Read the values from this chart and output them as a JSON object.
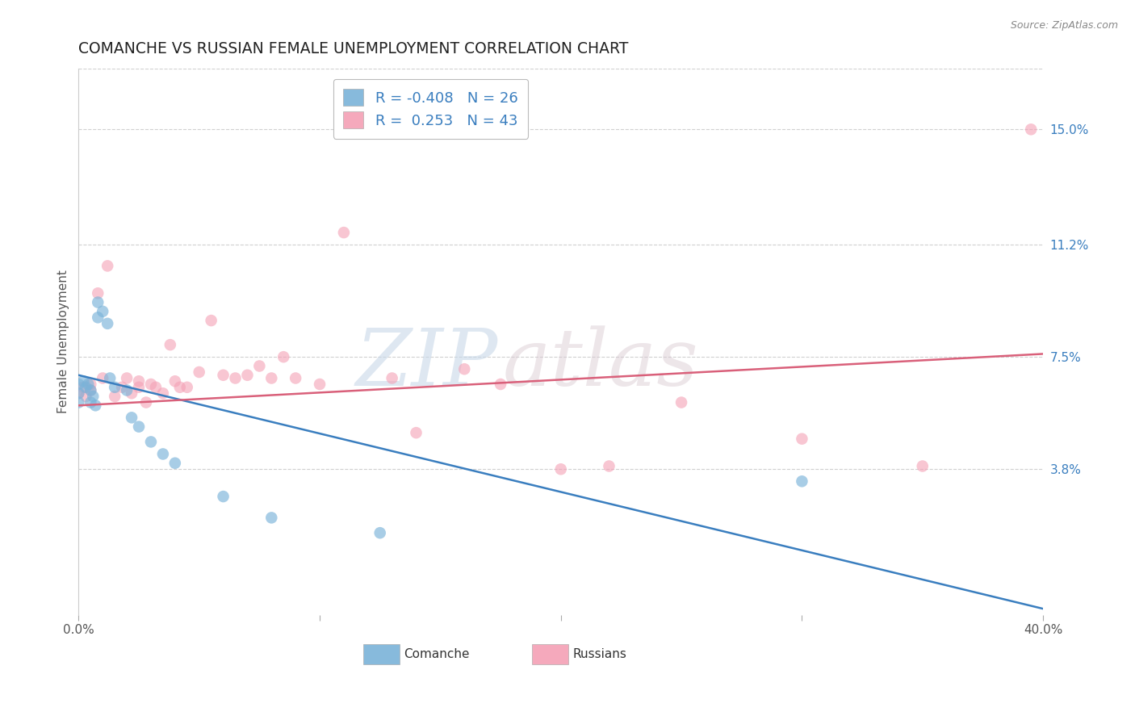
{
  "title": "COMANCHE VS RUSSIAN FEMALE UNEMPLOYMENT CORRELATION CHART",
  "source": "Source: ZipAtlas.com",
  "ylabel": "Female Unemployment",
  "xlim": [
    0.0,
    0.4
  ],
  "ylim": [
    -0.01,
    0.17
  ],
  "ytick_values": [
    0.038,
    0.075,
    0.112,
    0.15
  ],
  "ytick_labels": [
    "3.8%",
    "7.5%",
    "11.2%",
    "15.0%"
  ],
  "xtick_values": [
    0.0,
    0.1,
    0.2,
    0.3,
    0.4
  ],
  "xtick_labels": [
    "0.0%",
    "",
    "",
    "",
    "40.0%"
  ],
  "watermark_zip": "ZIP",
  "watermark_atlas": "atlas",
  "legend_blue_label": "R = -0.408   N = 26",
  "legend_pink_label": "R =  0.253   N = 43",
  "bottom_legend_comanche": "Comanche",
  "bottom_legend_russians": "Russians",
  "comanche_color": "#7ab3d9",
  "russian_color": "#f4a0b5",
  "comanche_line_color": "#3a7ebf",
  "russian_line_color": "#d9607a",
  "grid_color": "#d0d0d0",
  "background_color": "#ffffff",
  "title_fontsize": 13.5,
  "source_fontsize": 9,
  "tick_label_fontsize": 11,
  "legend_fontsize": 13,
  "ylabel_fontsize": 11,
  "marker_size": 110,
  "comanche_alpha": 0.65,
  "russian_alpha": 0.6,
  "comanche_x": [
    0.0,
    0.0,
    0.0,
    0.002,
    0.003,
    0.004,
    0.005,
    0.005,
    0.006,
    0.007,
    0.008,
    0.008,
    0.01,
    0.012,
    0.013,
    0.015,
    0.02,
    0.022,
    0.025,
    0.03,
    0.035,
    0.04,
    0.06,
    0.08,
    0.125,
    0.3
  ],
  "comanche_y": [
    0.066,
    0.063,
    0.06,
    0.067,
    0.065,
    0.066,
    0.064,
    0.06,
    0.062,
    0.059,
    0.088,
    0.093,
    0.09,
    0.086,
    0.068,
    0.065,
    0.064,
    0.055,
    0.052,
    0.047,
    0.043,
    0.04,
    0.029,
    0.022,
    0.017,
    0.034
  ],
  "russian_x": [
    0.0,
    0.002,
    0.003,
    0.005,
    0.005,
    0.008,
    0.01,
    0.012,
    0.015,
    0.018,
    0.02,
    0.022,
    0.025,
    0.025,
    0.028,
    0.03,
    0.032,
    0.035,
    0.038,
    0.04,
    0.042,
    0.045,
    0.05,
    0.055,
    0.06,
    0.065,
    0.07,
    0.075,
    0.08,
    0.085,
    0.09,
    0.1,
    0.11,
    0.13,
    0.14,
    0.16,
    0.175,
    0.2,
    0.22,
    0.25,
    0.3,
    0.35,
    0.395
  ],
  "russian_y": [
    0.063,
    0.065,
    0.062,
    0.066,
    0.064,
    0.096,
    0.068,
    0.105,
    0.062,
    0.065,
    0.068,
    0.063,
    0.067,
    0.065,
    0.06,
    0.066,
    0.065,
    0.063,
    0.079,
    0.067,
    0.065,
    0.065,
    0.07,
    0.087,
    0.069,
    0.068,
    0.069,
    0.072,
    0.068,
    0.075,
    0.068,
    0.066,
    0.116,
    0.068,
    0.05,
    0.071,
    0.066,
    0.038,
    0.039,
    0.06,
    0.048,
    0.039,
    0.15
  ],
  "comanche_line_x": [
    0.0,
    0.4
  ],
  "comanche_line_y": [
    0.069,
    -0.008
  ],
  "russian_line_x": [
    0.0,
    0.4
  ],
  "russian_line_y": [
    0.059,
    0.076
  ],
  "line_width": 1.8
}
